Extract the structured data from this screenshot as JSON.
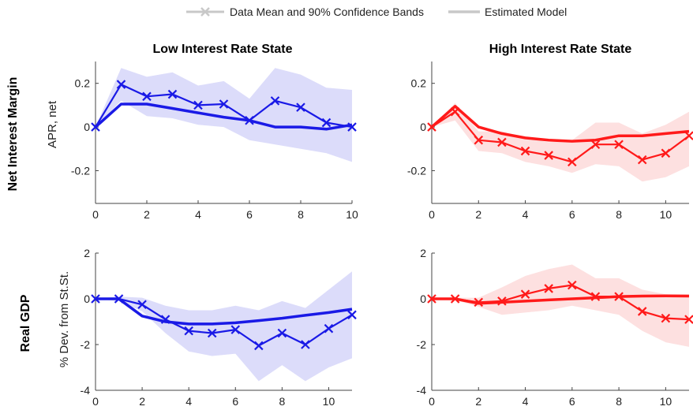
{
  "legend": {
    "data_label": "Data Mean and 90% Confidence Bands",
    "model_label": "Estimated Model",
    "color": "#c8c8c8"
  },
  "columns": [
    "Low Interest Rate State",
    "High Interest Rate State"
  ],
  "rows": [
    "Net Interest Margin",
    "Real GDP"
  ],
  "ylabels": [
    "APR, net",
    "% Dev. from St.St."
  ],
  "colors": {
    "low_line": "#1a1ae6",
    "low_band": "#dcdcfa",
    "high_line": "#ff1a1a",
    "high_band": "#fde0e0"
  },
  "chart_data": [
    {
      "type": "line",
      "title": "Low Interest Rate State",
      "row_label": "Net Interest Margin",
      "ylabel": "APR, net",
      "xlim": [
        0,
        10
      ],
      "ylim": [
        -0.35,
        0.3
      ],
      "xticks": [
        0,
        2,
        4,
        6,
        8,
        10
      ],
      "yticks": [
        -0.2,
        0,
        0.2
      ],
      "ytick_labels": [
        "-0.2",
        "0",
        "0.2"
      ],
      "x": [
        0,
        1,
        2,
        3,
        4,
        5,
        6,
        7,
        8,
        9,
        10
      ],
      "series": [
        {
          "name": "Data Mean and 90% Confidence Bands",
          "values": [
            0,
            0.195,
            0.14,
            0.15,
            0.1,
            0.105,
            0.03,
            0.12,
            0.09,
            0.02,
            0.0
          ],
          "band_lower": [
            0,
            0.12,
            0.05,
            0.04,
            0.01,
            0.0,
            -0.06,
            -0.08,
            -0.1,
            -0.12,
            -0.16
          ],
          "band_upper": [
            0,
            0.27,
            0.23,
            0.25,
            0.19,
            0.21,
            0.13,
            0.27,
            0.24,
            0.18,
            0.17
          ]
        },
        {
          "name": "Estimated Model",
          "values": [
            0,
            0.105,
            0.105,
            0.085,
            0.065,
            0.045,
            0.03,
            0.0,
            0.0,
            -0.01,
            0.01
          ]
        }
      ]
    },
    {
      "type": "line",
      "title": "High Interest Rate State",
      "row_label": "Net Interest Margin",
      "ylabel": "",
      "xlim": [
        0,
        11
      ],
      "ylim": [
        -0.35,
        0.3
      ],
      "xticks": [
        0,
        2,
        4,
        6,
        8,
        10
      ],
      "yticks": [
        -0.2,
        0,
        0.2
      ],
      "ytick_labels": [
        "-0.2",
        "0",
        "0.2"
      ],
      "x": [
        0,
        1,
        2,
        3,
        4,
        5,
        6,
        7,
        8,
        9,
        10,
        11
      ],
      "series": [
        {
          "name": "Data Mean and 90% Confidence Bands",
          "values": [
            0,
            0.07,
            -0.06,
            -0.07,
            -0.11,
            -0.13,
            -0.16,
            -0.08,
            -0.08,
            -0.15,
            -0.12,
            -0.04
          ],
          "band_lower": [
            0,
            0.03,
            -0.11,
            -0.12,
            -0.16,
            -0.18,
            -0.21,
            -0.17,
            -0.18,
            -0.25,
            -0.23,
            -0.18
          ],
          "band_upper": [
            0,
            0.11,
            -0.02,
            -0.02,
            -0.05,
            -0.07,
            -0.06,
            0.02,
            0.02,
            -0.03,
            0.01,
            0.07
          ]
        },
        {
          "name": "Estimated Model",
          "values": [
            0,
            0.095,
            0.0,
            -0.03,
            -0.05,
            -0.06,
            -0.065,
            -0.06,
            -0.04,
            -0.04,
            -0.03,
            -0.02
          ]
        }
      ]
    },
    {
      "type": "line",
      "title": "",
      "row_label": "Real GDP",
      "ylabel": "% Dev. from St.St.",
      "xlim": [
        0,
        11
      ],
      "ylim": [
        -4,
        2
      ],
      "xticks": [
        0,
        2,
        4,
        6,
        8,
        10
      ],
      "yticks": [
        -4,
        -2,
        0,
        2
      ],
      "ytick_labels": [
        "-4",
        "-2",
        "0",
        "2"
      ],
      "x": [
        0,
        1,
        2,
        3,
        4,
        5,
        6,
        7,
        8,
        9,
        10,
        11
      ],
      "series": [
        {
          "name": "Data Mean and 90% Confidence Bands",
          "values": [
            0,
            0,
            -0.25,
            -0.9,
            -1.4,
            -1.5,
            -1.35,
            -2.05,
            -1.5,
            -2.0,
            -1.3,
            -0.7
          ],
          "band_lower": [
            0,
            -0.1,
            -0.55,
            -1.5,
            -2.3,
            -2.5,
            -2.4,
            -3.6,
            -2.9,
            -3.6,
            -3.0,
            -2.6
          ],
          "band_upper": [
            0,
            0.1,
            0.05,
            -0.3,
            -0.5,
            -0.5,
            -0.3,
            -0.5,
            -0.1,
            -0.4,
            0.4,
            1.2
          ]
        },
        {
          "name": "Estimated Model",
          "values": [
            0,
            0,
            -0.75,
            -1.0,
            -1.1,
            -1.1,
            -1.05,
            -0.95,
            -0.85,
            -0.72,
            -0.6,
            -0.45
          ]
        }
      ]
    },
    {
      "type": "line",
      "title": "",
      "row_label": "Real GDP",
      "ylabel": "",
      "xlim": [
        0,
        11
      ],
      "ylim": [
        -4,
        2
      ],
      "xticks": [
        0,
        2,
        4,
        6,
        8,
        10
      ],
      "yticks": [
        -4,
        -2,
        0,
        2
      ],
      "ytick_labels": [
        "-4",
        "-2",
        "0",
        "2"
      ],
      "x": [
        0,
        1,
        2,
        3,
        4,
        5,
        6,
        7,
        8,
        9,
        10,
        11
      ],
      "series": [
        {
          "name": "Data Mean and 90% Confidence Bands",
          "values": [
            0,
            0,
            -0.15,
            -0.1,
            0.2,
            0.45,
            0.6,
            0.1,
            0.1,
            -0.55,
            -0.85,
            -0.9
          ],
          "band_lower": [
            0,
            -0.05,
            -0.35,
            -0.7,
            -0.6,
            -0.5,
            -0.3,
            -0.5,
            -0.7,
            -1.4,
            -1.9,
            -2.1
          ],
          "band_upper": [
            0,
            0.05,
            0.05,
            0.5,
            1.0,
            1.3,
            1.5,
            0.9,
            0.9,
            0.4,
            0.2,
            0.2
          ]
        },
        {
          "name": "Estimated Model",
          "values": [
            0,
            0,
            -0.2,
            -0.15,
            -0.1,
            -0.05,
            0.0,
            0.05,
            0.1,
            0.12,
            0.13,
            0.12
          ]
        }
      ]
    }
  ]
}
